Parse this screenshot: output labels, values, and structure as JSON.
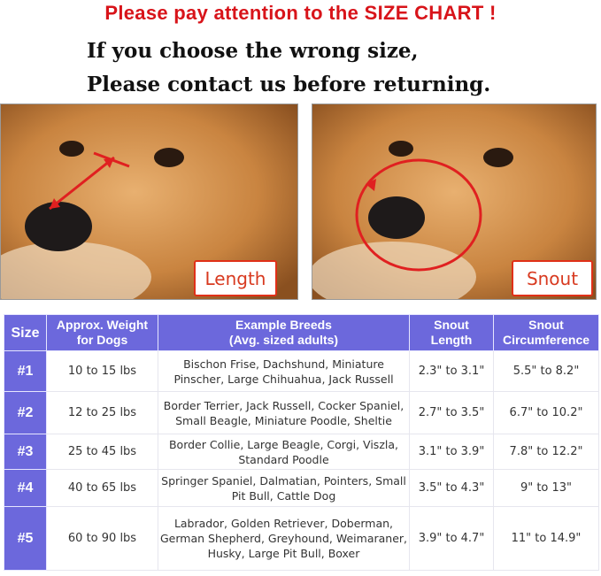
{
  "heading": "Please pay attention to the SIZE CHART !",
  "subheading_line1": "If you choose the wrong size,",
  "subheading_line2": "Please contact us before returning.",
  "photos": [
    {
      "label": "Length",
      "measure": "arrow-length"
    },
    {
      "label": "Snout",
      "measure": "circle-circumference"
    }
  ],
  "colors": {
    "heading_red": "#d8141a",
    "table_header": "#6c68dc",
    "tag_border": "#e03018"
  },
  "table": {
    "headers": [
      "Size",
      "Approx. Weight for Dogs",
      "Example Breeds (Avg. sized adults)",
      "Snout Length",
      "Snout Circumference"
    ],
    "header_lines": [
      [
        "Size"
      ],
      [
        "Approx. Weight",
        "for Dogs"
      ],
      [
        "Example Breeds",
        "(Avg. sized adults)"
      ],
      [
        "Snout",
        "Length"
      ],
      [
        "Snout",
        "Circumference"
      ]
    ],
    "rows": [
      {
        "size": "#1",
        "weight": "10 to 15 lbs",
        "breeds": "Bischon Frise, Dachshund, Miniature Pinscher, Large Chihuahua, Jack Russell",
        "length": "2.3\" to 3.1\"",
        "circumference": "5.5\" to 8.2\""
      },
      {
        "size": "#2",
        "weight": "12 to 25 lbs",
        "breeds": "Border Terrier, Jack Russell, Cocker Spaniel, Small Beagle, Miniature Poodle, Sheltie",
        "length": "2.7\" to 3.5\"",
        "circumference": "6.7\" to 10.2\""
      },
      {
        "size": "#3",
        "weight": "25 to 45 lbs",
        "breeds": "Border Collie, Large Beagle, Corgi, Viszla, Standard Poodle",
        "length": "3.1\" to 3.9\"",
        "circumference": "7.8\" to 12.2\""
      },
      {
        "size": "#4",
        "weight": "40 to 65 lbs",
        "breeds": "Springer Spaniel, Dalmatian, Pointers, Small Pit Bull, Cattle Dog",
        "length": "3.5\" to 4.3\"",
        "circumference": "9\" to 13\""
      },
      {
        "size": "#5",
        "weight": "60 to 90 lbs",
        "breeds": "Labrador, Golden Retriever, Doberman, German Shepherd, Greyhound, Weimaraner, Husky, Large Pit Bull, Boxer",
        "length": "3.9\" to 4.7\"",
        "circumference": "11\" to 14.9\""
      }
    ]
  }
}
